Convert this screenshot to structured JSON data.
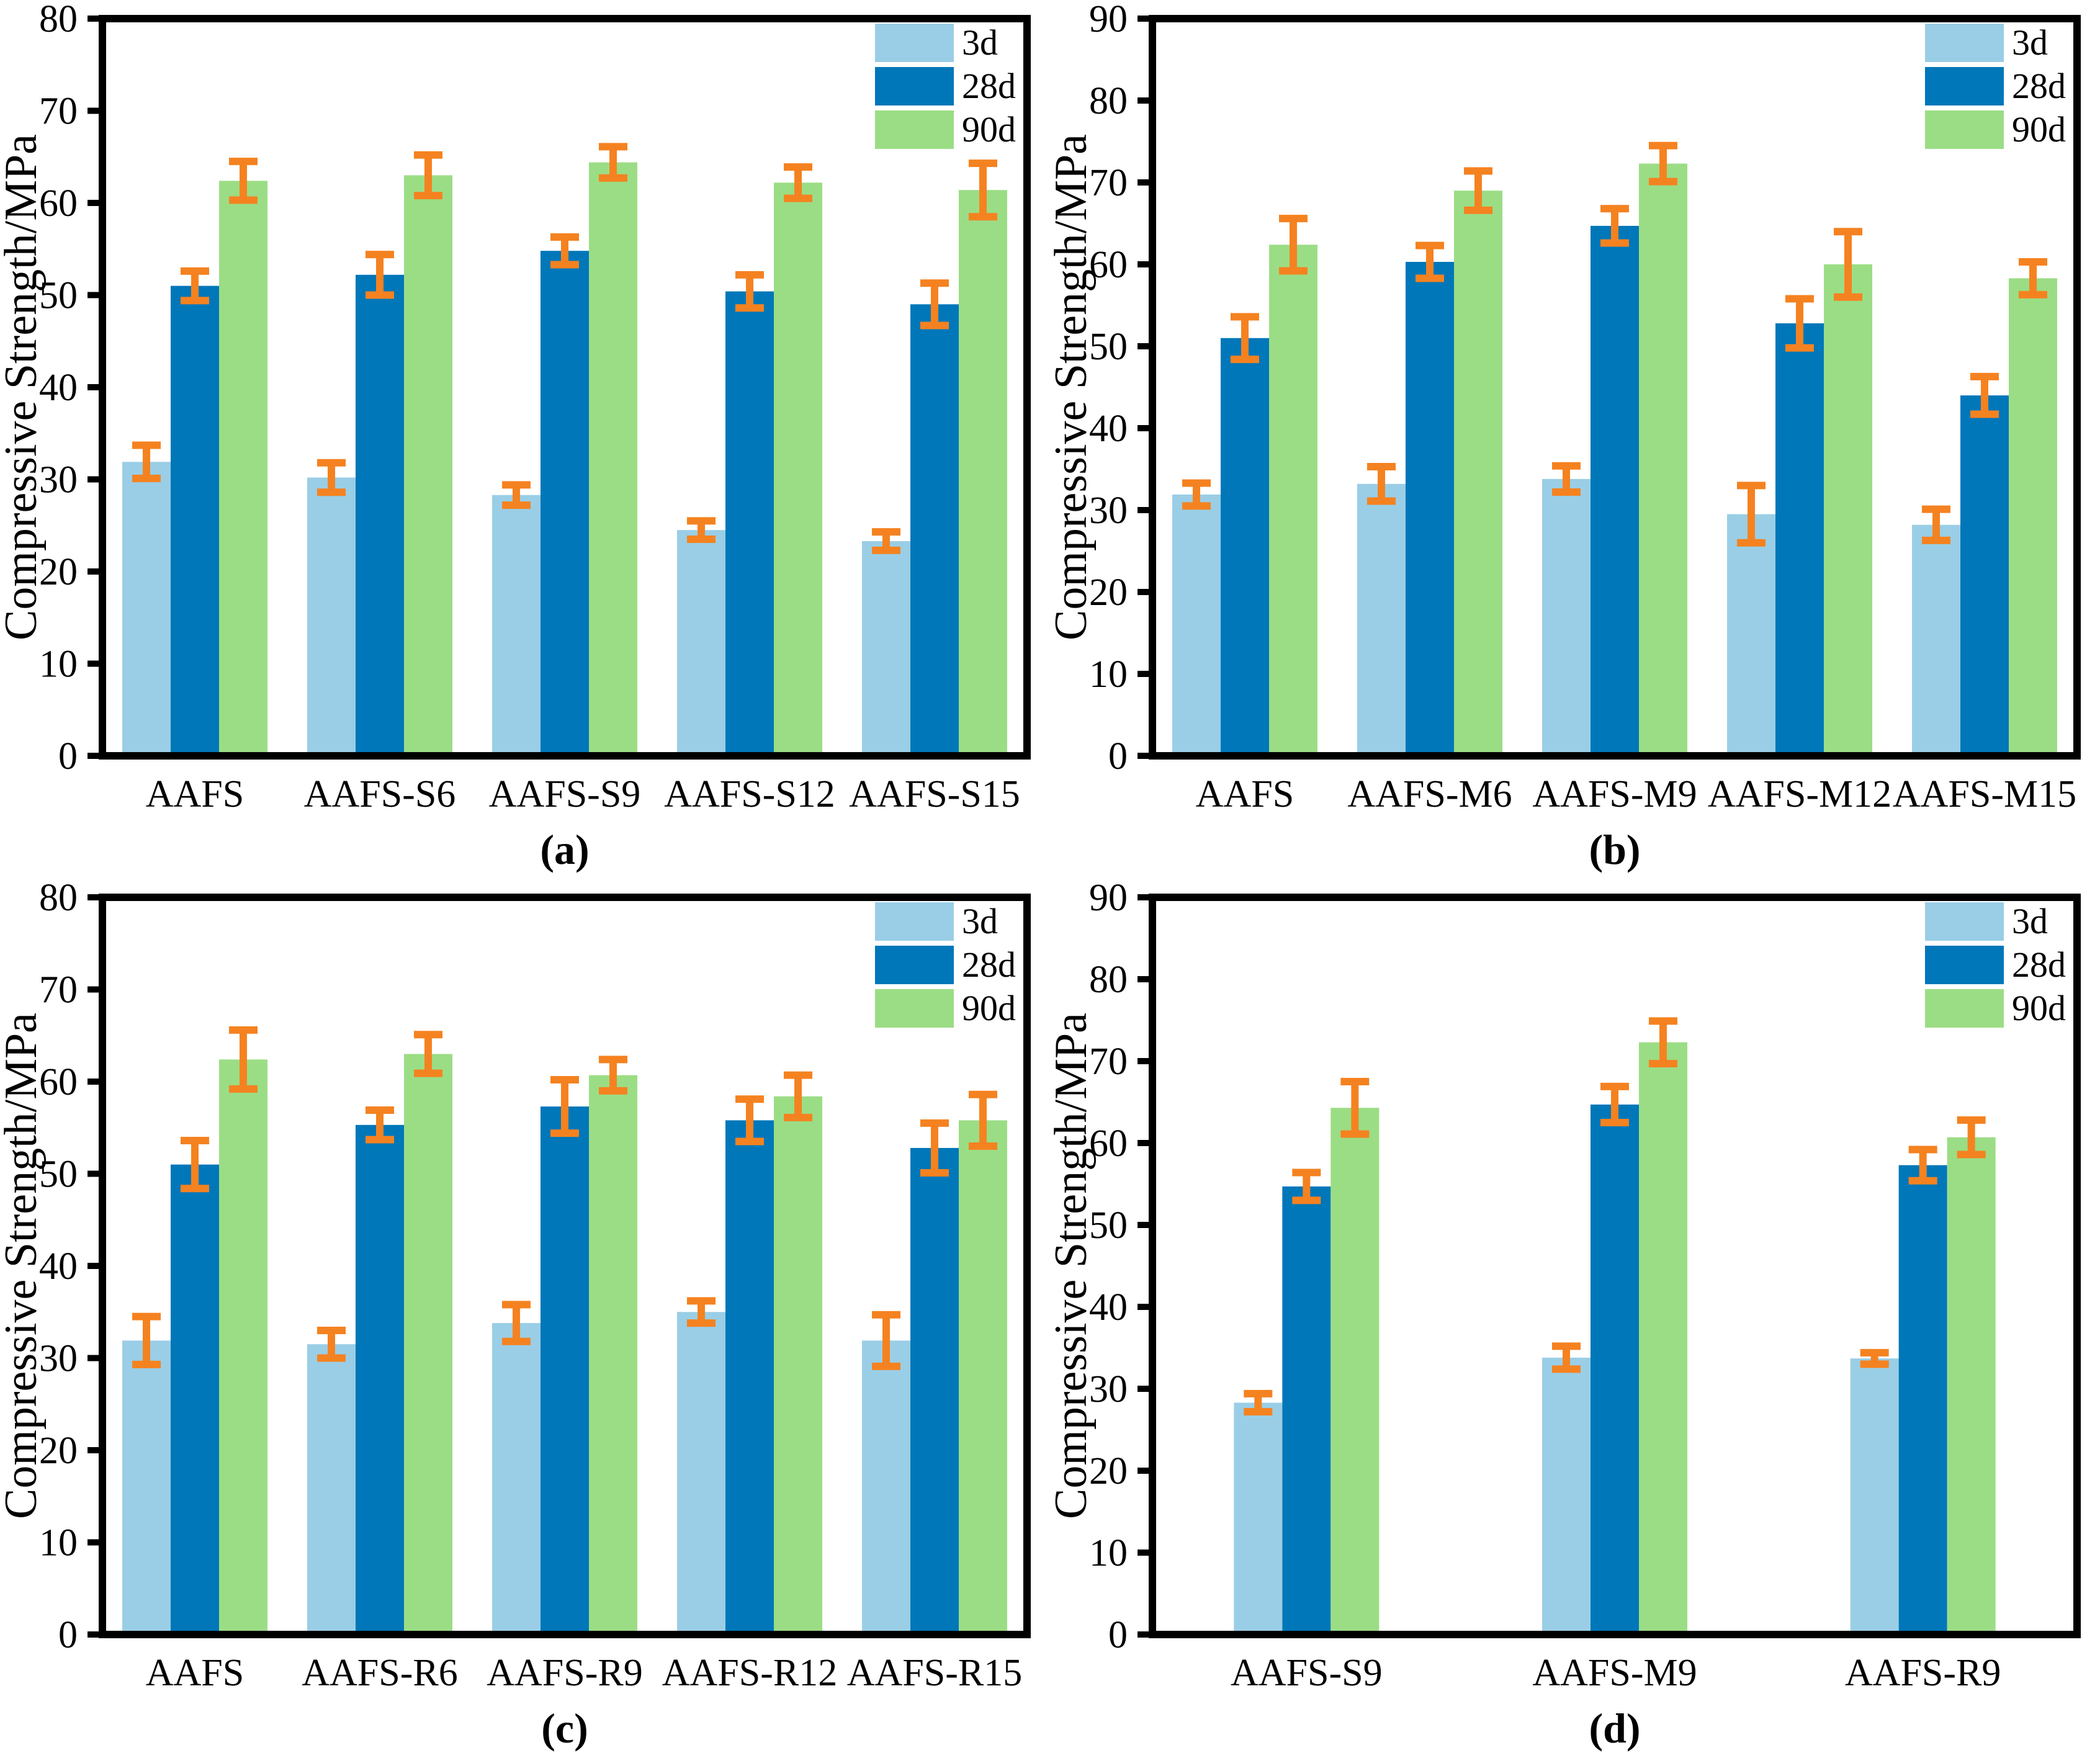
{
  "figure": {
    "description_visible_text_only": "Four grouped bar charts of compressive strength with error bars",
    "captions": [
      "(a)",
      "(b)",
      "(c)",
      "(d)"
    ]
  },
  "colors": {
    "bar_3d": "#9ACEE6",
    "bar_28d": "#0077B9",
    "bar_90d": "#9BDD85",
    "error_bar": "#F58220",
    "axis": "#000000",
    "background": "#FFFFFF"
  },
  "chart_data": [
    {
      "id": "a",
      "type": "bar",
      "caption": "(a)",
      "ylabel": "Compressive Strength/MPa",
      "xlabel": "",
      "ylim": [
        0,
        80
      ],
      "ytick_step": 10,
      "grid": false,
      "legend_position": "top-right",
      "legend": [
        "3d",
        "28d",
        "90d"
      ],
      "categories": [
        "AAFS",
        "AAFS-S6",
        "AAFS-S9",
        "AAFS-S12",
        "AAFS-S15"
      ],
      "series": [
        {
          "name": "3d",
          "values": [
            31.9,
            30.2,
            28.3,
            24.5,
            23.3
          ],
          "errors": [
            1.8,
            1.6,
            1.1,
            1.0,
            1.0
          ]
        },
        {
          "name": "28d",
          "values": [
            51.0,
            52.2,
            54.8,
            50.4,
            49.0
          ],
          "errors": [
            1.6,
            2.2,
            1.5,
            1.8,
            2.3
          ]
        },
        {
          "name": "90d",
          "values": [
            62.4,
            63.0,
            64.4,
            62.2,
            61.4
          ],
          "errors": [
            2.1,
            2.2,
            1.7,
            1.7,
            2.9
          ]
        }
      ]
    },
    {
      "id": "b",
      "type": "bar",
      "caption": "(b)",
      "ylabel": "Compressive Strength/MPa",
      "xlabel": "",
      "ylim": [
        0,
        90
      ],
      "ytick_step": 10,
      "grid": false,
      "legend_position": "top-right",
      "legend": [
        "3d",
        "28d",
        "90d"
      ],
      "categories": [
        "AAFS",
        "AAFS-M6",
        "AAFS-M9",
        "AAFS-M12",
        "AAFS-M15"
      ],
      "series": [
        {
          "name": "3d",
          "values": [
            31.9,
            33.2,
            33.8,
            29.5,
            28.2
          ],
          "errors": [
            1.4,
            2.1,
            1.6,
            3.5,
            1.9
          ]
        },
        {
          "name": "28d",
          "values": [
            51.0,
            60.3,
            64.7,
            52.8,
            44.0
          ],
          "errors": [
            2.6,
            2.0,
            2.1,
            3.0,
            2.3
          ]
        },
        {
          "name": "90d",
          "values": [
            62.4,
            69.0,
            72.3,
            60.0,
            58.3
          ],
          "errors": [
            3.2,
            2.4,
            2.2,
            4.0,
            2.0
          ]
        }
      ]
    },
    {
      "id": "c",
      "type": "bar",
      "caption": "(c)",
      "ylabel": "Compressive Strength/MPa",
      "xlabel": "",
      "ylim": [
        0,
        80
      ],
      "ytick_step": 10,
      "grid": false,
      "legend_position": "top-right",
      "legend": [
        "3d",
        "28d",
        "90d"
      ],
      "categories": [
        "AAFS",
        "AAFS-R6",
        "AAFS-R9",
        "AAFS-R12",
        "AAFS-R15"
      ],
      "series": [
        {
          "name": "3d",
          "values": [
            31.9,
            31.5,
            33.8,
            35.0,
            31.9
          ],
          "errors": [
            2.6,
            1.5,
            2.0,
            1.2,
            2.8
          ]
        },
        {
          "name": "28d",
          "values": [
            51.0,
            55.3,
            57.3,
            55.8,
            52.8
          ],
          "errors": [
            2.6,
            1.6,
            2.9,
            2.3,
            2.7
          ]
        },
        {
          "name": "90d",
          "values": [
            62.4,
            63.0,
            60.7,
            58.4,
            55.8
          ],
          "errors": [
            3.2,
            2.1,
            1.7,
            2.3,
            2.8
          ]
        }
      ]
    },
    {
      "id": "d",
      "type": "bar",
      "caption": "(d)",
      "ylabel": "Compressive Strength/MPa",
      "xlabel": "",
      "ylim": [
        0,
        90
      ],
      "ytick_step": 10,
      "grid": false,
      "legend_position": "top-right",
      "legend": [
        "3d",
        "28d",
        "90d"
      ],
      "categories": [
        "AAFS-S9",
        "AAFS-M9",
        "AAFS-R9"
      ],
      "series": [
        {
          "name": "3d",
          "values": [
            28.3,
            33.8,
            33.7
          ],
          "errors": [
            1.1,
            1.4,
            0.7
          ]
        },
        {
          "name": "28d",
          "values": [
            54.7,
            64.7,
            57.3
          ],
          "errors": [
            1.7,
            2.2,
            1.9
          ]
        },
        {
          "name": "90d",
          "values": [
            64.3,
            72.3,
            60.7
          ],
          "errors": [
            3.2,
            2.6,
            2.1
          ]
        }
      ]
    }
  ]
}
